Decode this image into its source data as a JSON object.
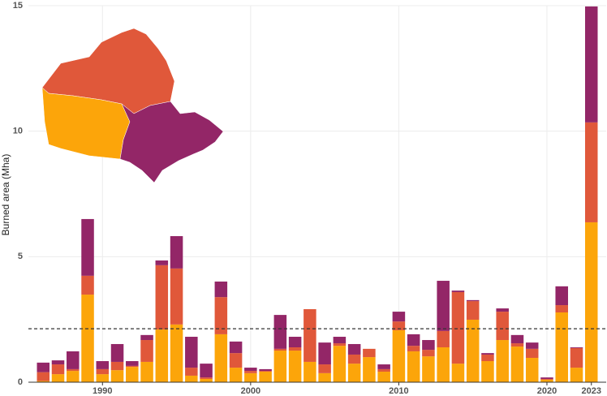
{
  "chart_data": {
    "type": "stacked-bar",
    "y_label": "Burned area (Mha)",
    "x": [
      1986,
      1987,
      1988,
      1989,
      1990,
      1991,
      1992,
      1993,
      1994,
      1995,
      1996,
      1997,
      1998,
      1999,
      2000,
      2001,
      2002,
      2003,
      2004,
      2005,
      2006,
      2007,
      2008,
      2009,
      2010,
      2011,
      2012,
      2013,
      2014,
      2015,
      2016,
      2017,
      2018,
      2019,
      2020,
      2021,
      2022,
      2023
    ],
    "series": [
      {
        "color": "#fca50a",
        "values": [
          0.05,
          0.32,
          0.45,
          3.49,
          0.32,
          0.48,
          0.61,
          0.81,
          2.1,
          2.3,
          0.26,
          0.13,
          1.91,
          0.58,
          0.36,
          0.42,
          1.26,
          1.26,
          0.81,
          0.36,
          1.45,
          0.74,
          1.0,
          0.42,
          2.07,
          1.23,
          1.03,
          1.39,
          0.74,
          2.49,
          0.84,
          1.68,
          1.42,
          0.97,
          0.1,
          2.78,
          0.58,
          6.37
        ]
      },
      {
        "color": "#e0583a",
        "values": [
          0.35,
          0.39,
          0.07,
          0.75,
          0.2,
          0.33,
          0.04,
          0.87,
          2.56,
          2.23,
          0.32,
          0.06,
          1.48,
          0.58,
          0.09,
          0.03,
          0.07,
          0.13,
          2.1,
          0.35,
          0.1,
          0.36,
          0.33,
          0.1,
          0.35,
          0.22,
          0.26,
          0.65,
          2.85,
          0.74,
          0.26,
          1.13,
          0.13,
          0.36,
          0.03,
          0.29,
          0.78,
          3.98
        ]
      },
      {
        "color": "#932667",
        "values": [
          0.38,
          0.16,
          0.71,
          2.26,
          0.32,
          0.71,
          0.19,
          0.2,
          0.19,
          1.29,
          1.23,
          0.55,
          0.62,
          0.46,
          0.13,
          0.07,
          1.35,
          0.42,
          0,
          0.87,
          0.26,
          0.42,
          0,
          0.19,
          0.39,
          0.46,
          0.39,
          2.0,
          0.06,
          0.04,
          0.06,
          0.13,
          0.33,
          0.25,
          0.06,
          0.75,
          0.03,
          4.62
        ]
      }
    ],
    "reference_line": 2.13,
    "xlim": [
      1985,
      2024
    ],
    "xticks": [
      1990,
      2000,
      2010,
      2020,
      2023
    ],
    "ylim": [
      0,
      15
    ],
    "yticks": [
      0,
      5,
      10,
      15
    ],
    "grid": true
  }
}
